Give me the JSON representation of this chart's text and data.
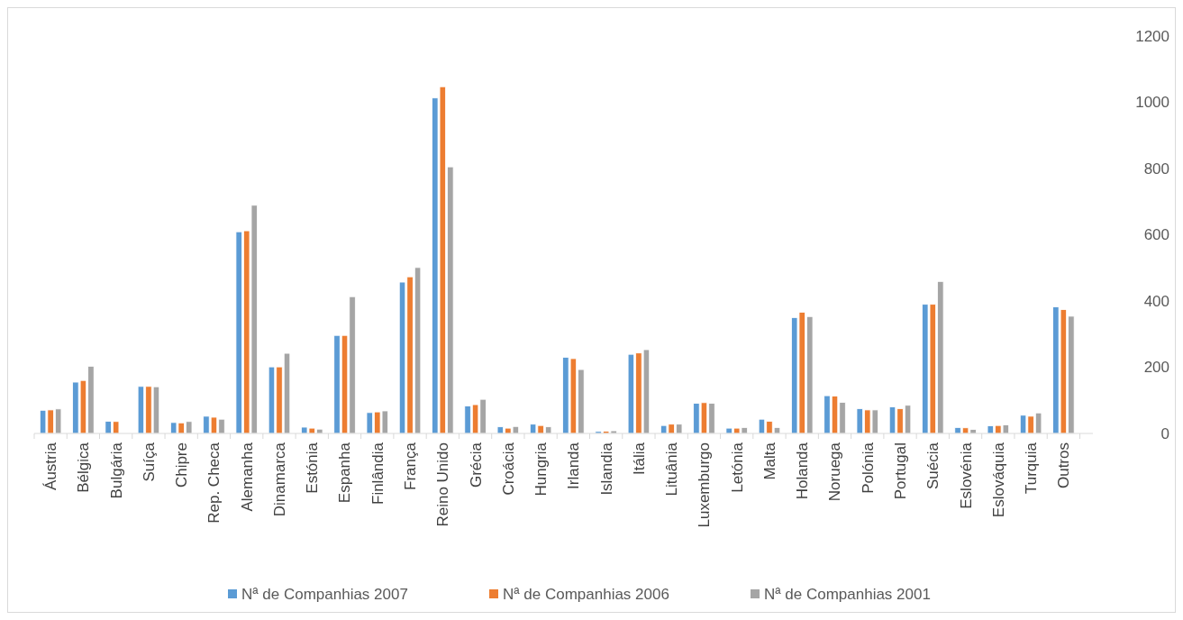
{
  "chart_data": {
    "type": "bar",
    "categories": [
      "Áustria",
      "Bélgica",
      "Bulgária",
      "Suíça",
      "Chipre",
      "Rep. Checa",
      "Alemanha",
      "Dinamarca",
      "Estónia",
      "Espanha",
      "Finlândia",
      "França",
      "Reino Unido",
      "Grécia",
      "Croácia",
      "Hungria",
      "Irlanda",
      "Islandia",
      "Itália",
      "Lituânia",
      "Luxemburgo",
      "Letónia",
      "Malta",
      "Holanda",
      "Noruega",
      "Polónia",
      "Portugal",
      "Suécia",
      "Eslovénia",
      "Eslováquia",
      "Turquia",
      "Outros"
    ],
    "series": [
      {
        "name": "Nª de Companhias 2007",
        "color": "#5b9bd5",
        "values": [
          70,
          155,
          37,
          142,
          33,
          52,
          609,
          201,
          19,
          296,
          63,
          457,
          1013,
          83,
          20,
          28,
          230,
          6,
          239,
          24,
          91,
          16,
          43,
          350,
          114,
          75,
          80,
          390,
          18,
          23,
          55,
          382
        ]
      },
      {
        "name": "Nª de Companhias 2006",
        "color": "#ed7d31",
        "values": [
          71,
          160,
          36,
          142,
          32,
          49,
          612,
          201,
          16,
          296,
          65,
          473,
          1047,
          87,
          16,
          24,
          226,
          7,
          243,
          28,
          93,
          16,
          37,
          366,
          113,
          71,
          75,
          390,
          17,
          24,
          52,
          374
        ]
      },
      {
        "name": "Nª de Companhias 2001",
        "color": "#a5a5a5",
        "values": [
          74,
          203,
          null,
          141,
          36,
          43,
          689,
          242,
          13,
          413,
          68,
          501,
          805,
          103,
          21,
          20,
          193,
          8,
          253,
          28,
          91,
          18,
          18,
          353,
          94,
          71,
          85,
          459,
          12,
          26,
          62,
          354
        ]
      }
    ],
    "ylim": [
      0,
      1200
    ],
    "yticks": [
      0,
      200,
      400,
      600,
      800,
      1000,
      1200
    ],
    "grid": false,
    "legend": "bottom"
  }
}
